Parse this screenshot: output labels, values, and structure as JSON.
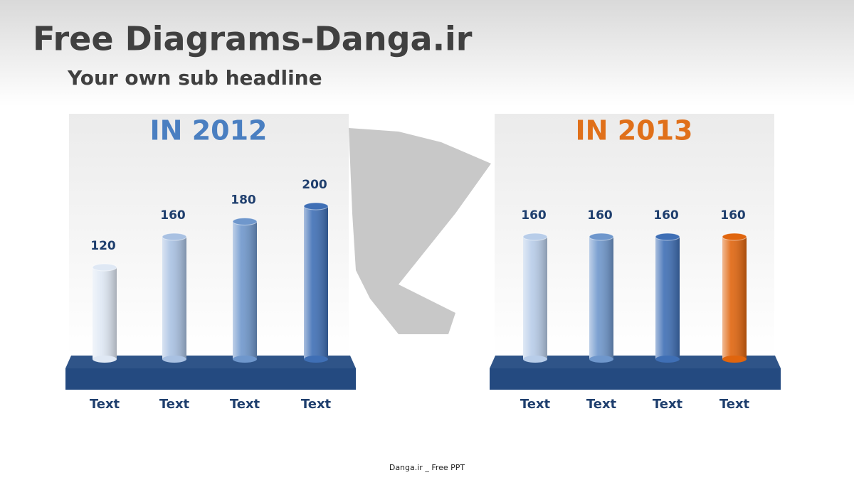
{
  "title": "Free Diagrams-Danga.ir",
  "subtitle": "Your own sub headline",
  "footer": "Danga.ir _ Free PPT",
  "chart_data": [
    {
      "type": "bar",
      "title": "IN 2012",
      "title_color": "#4a7fc1",
      "categories": [
        "Text",
        "Text",
        "Text",
        "Text"
      ],
      "values": [
        120,
        160,
        180,
        200
      ],
      "colors": [
        "#dfe8f4",
        "#a9c1e2",
        "#6f97cc",
        "#3f6fb5"
      ]
    },
    {
      "type": "bar",
      "title": "IN 2013",
      "title_color": "#e0701a",
      "categories": [
        "Text",
        "Text",
        "Text",
        "Text"
      ],
      "values": [
        160,
        160,
        160,
        160
      ],
      "colors": [
        "#b8cde9",
        "#6f97cc",
        "#3f6fb5",
        "#e0650e"
      ]
    }
  ]
}
